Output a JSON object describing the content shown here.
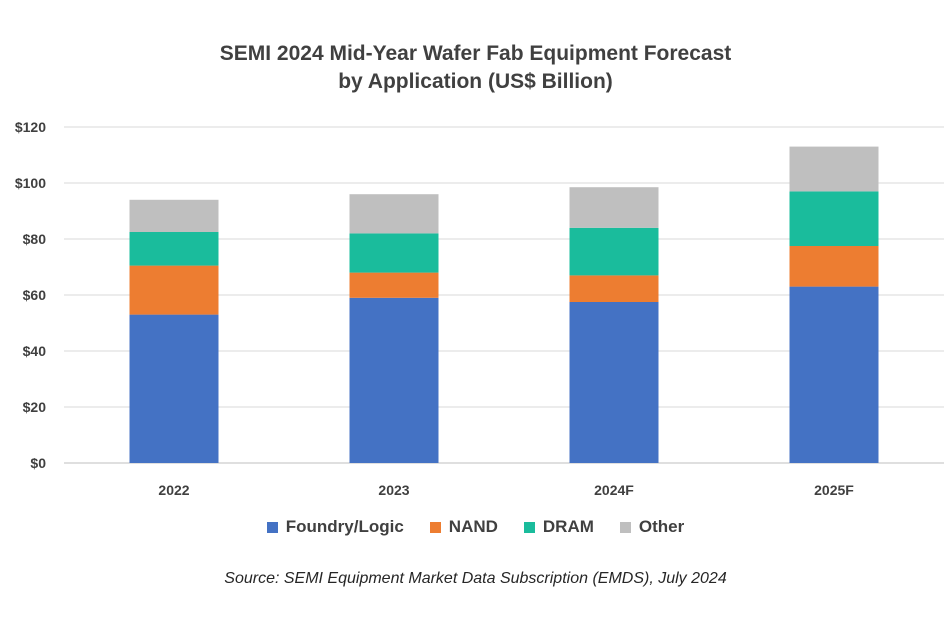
{
  "chart_data": {
    "type": "bar",
    "stacked": true,
    "title_lines": [
      "SEMI 2024 Mid-Year Wafer Fab Equipment Forecast",
      "by Application (US$ Billion)"
    ],
    "categories": [
      "2022",
      "2023",
      "2024F",
      "2025F"
    ],
    "series": [
      {
        "name": "Foundry/Logic",
        "color": "#4472C4",
        "values": [
          53,
          59,
          57.5,
          63
        ]
      },
      {
        "name": "NAND",
        "color": "#ED7D31",
        "values": [
          17.5,
          9,
          9.5,
          14.5
        ]
      },
      {
        "name": "DRAM",
        "color": "#1ABC9C",
        "values": [
          12,
          14,
          17,
          19.5
        ]
      },
      {
        "name": "Other",
        "color": "#BFBFBF",
        "values": [
          11.5,
          14,
          14.5,
          16
        ]
      }
    ],
    "ylim": [
      0,
      120
    ],
    "y_ticks": [
      0,
      20,
      40,
      60,
      80,
      100,
      120
    ],
    "y_tick_labels": [
      "$0",
      "$20",
      "$40",
      "$60",
      "$80",
      "$100",
      "$120"
    ],
    "grid": true,
    "legend_position": "bottom",
    "xlabel": "",
    "ylabel": ""
  },
  "source_text": "Source: SEMI Equipment Market Data Subscription (EMDS), July 2024"
}
